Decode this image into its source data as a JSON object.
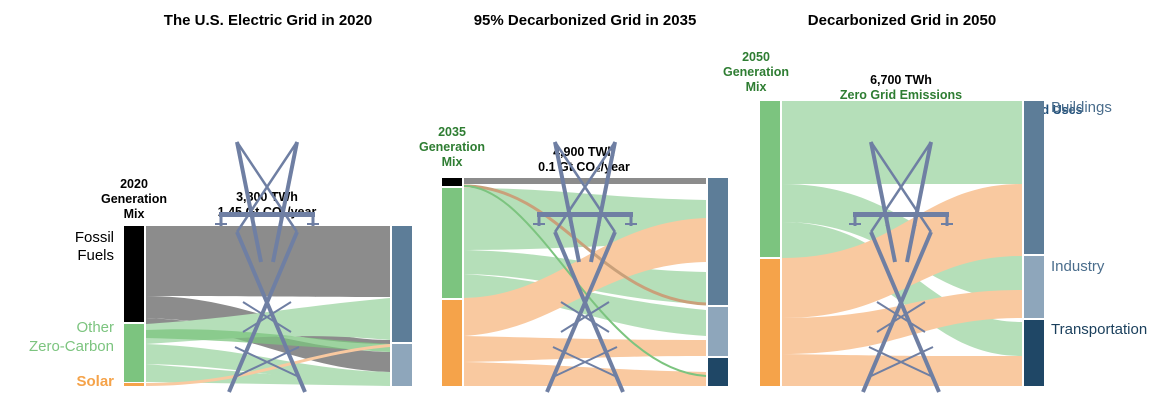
{
  "panels": [
    {
      "title": "The U.S. Electric Grid in 2020",
      "mix_label": [
        "2020",
        "Generation",
        "Mix"
      ],
      "energy": "3,800 TWh",
      "emissions": "1.45 Gt CO₂/year",
      "sources": [
        {
          "name": [
            "Fossil",
            "Fuels"
          ],
          "share": 0.61
        },
        {
          "name": [
            "Other",
            "Zero-Carbon"
          ],
          "share": 0.37
        },
        {
          "name": [
            "Solar"
          ],
          "share": 0.02
        }
      ]
    },
    {
      "title": "95% Decarbonized Grid in 2035",
      "mix_label": [
        "2035",
        "Generation",
        "Mix"
      ],
      "energy": "4,900 TWh",
      "emissions": "0.1 Gt CO₂/year"
    },
    {
      "title": "Decarbonized Grid in 2050",
      "mix_label": [
        "2050",
        "Generation",
        "Mix"
      ],
      "energy": "6,700 TWh",
      "emissions": "Zero Grid Emissions",
      "end_uses_label": "End Uses",
      "end_uses": [
        "Buildings",
        "Industry",
        "Transportation"
      ]
    }
  ],
  "colors": {
    "fossil": "#000000",
    "fossil_flow": "#8c8c8c",
    "zero_carbon": "#7cc47f",
    "zero_carbon_flow": "#b5dfb9",
    "solar": "#f5a34a",
    "solar_flow": "#f9c9a0",
    "buildings": "#5d7d98",
    "industry": "#8ea6bb",
    "transportation": "#1f4766",
    "tower": "#6f7fa3"
  }
}
